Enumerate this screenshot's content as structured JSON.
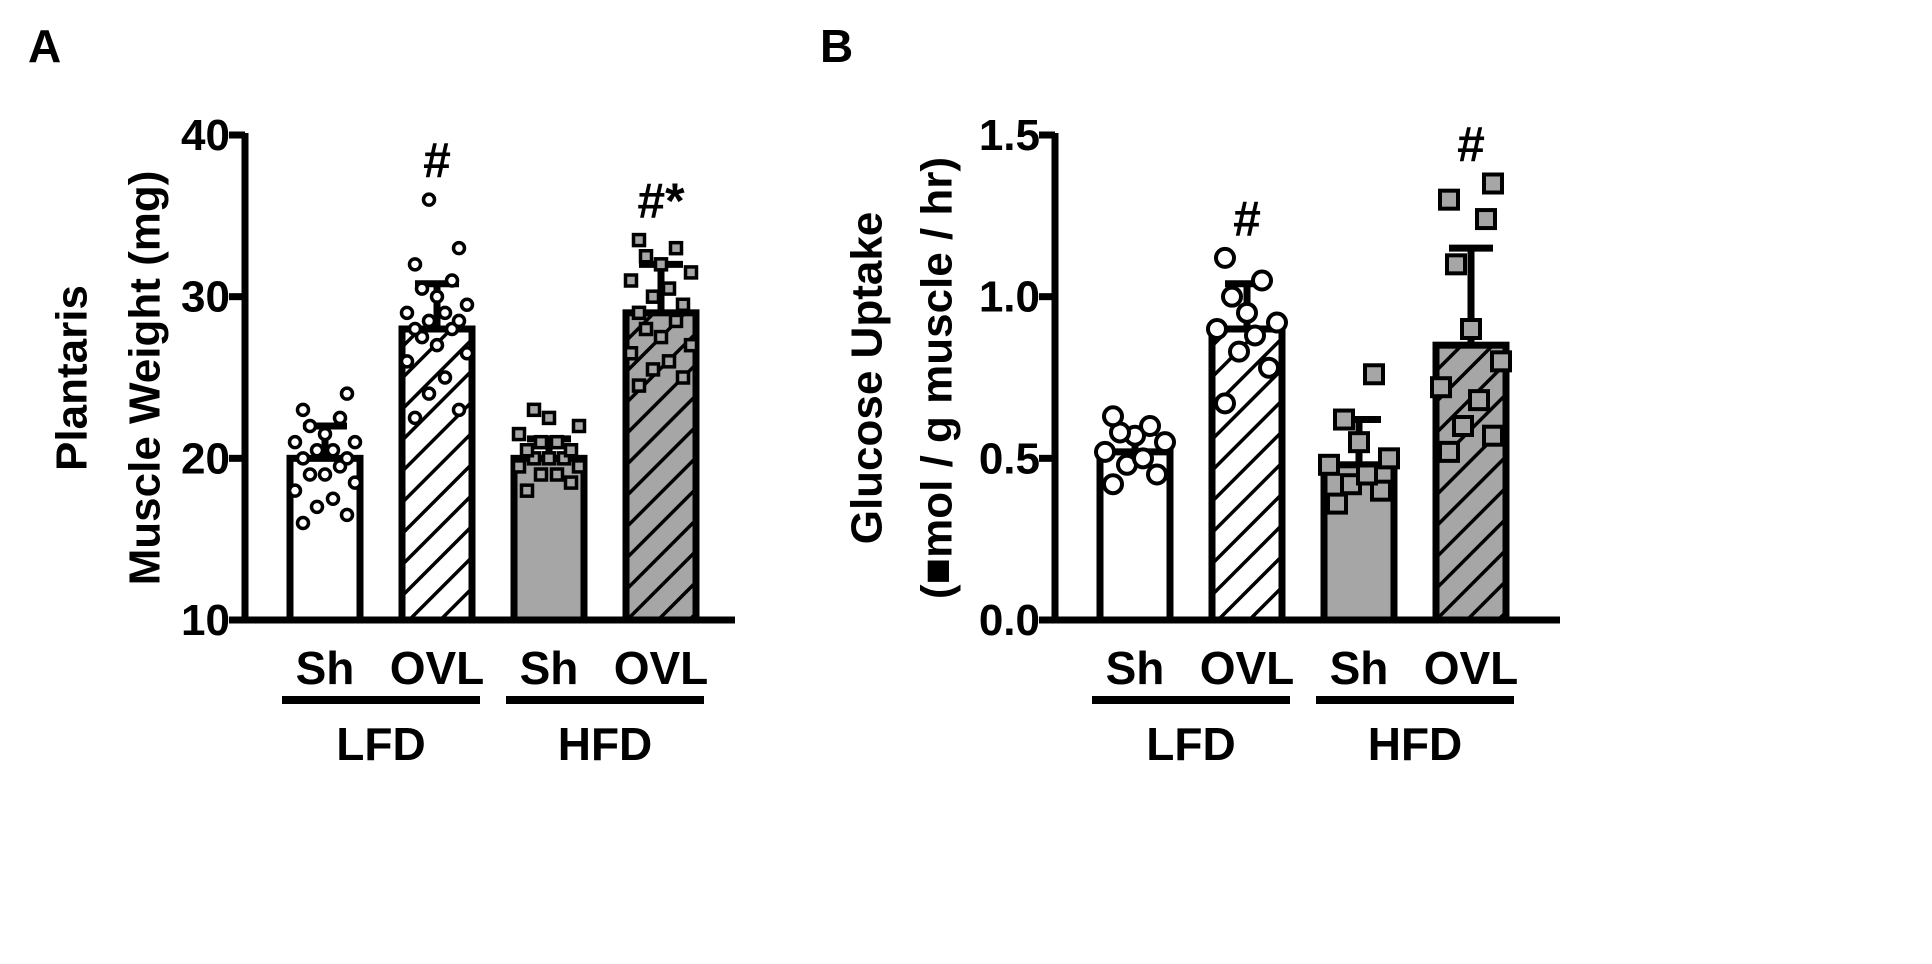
{
  "colors": {
    "open": "#ffffff",
    "gray": "#a6a6a6",
    "ink": "#000000"
  },
  "chart_data": [
    {
      "type": "bar",
      "panel_label": "A",
      "ylabel_lines": [
        "Plantaris",
        "Muscle Weight (mg)"
      ],
      "ylim": [
        10,
        40
      ],
      "yticks": [
        "10",
        "20",
        "30",
        "40"
      ],
      "categories": [
        "Sh",
        "OVL",
        "Sh",
        "OVL"
      ],
      "groups": [
        "LFD",
        "HFD"
      ],
      "bars": [
        {
          "label": "Sh",
          "group": "LFD",
          "value": 20.0,
          "error": 2.0,
          "fill": "white",
          "hatch": false,
          "marker": "circle",
          "sig": "",
          "points": [
            16,
            16.5,
            17,
            17.5,
            18,
            18.5,
            19,
            19,
            19.5,
            20,
            20,
            20.5,
            20.5,
            21,
            21,
            21.5,
            22,
            22.5,
            23,
            24
          ]
        },
        {
          "label": "OVL",
          "group": "LFD",
          "value": 28.0,
          "error": 2.8,
          "fill": "white",
          "hatch": true,
          "marker": "circle",
          "sig": "#",
          "points": [
            22.5,
            23,
            24,
            25,
            26,
            26.5,
            27,
            27.5,
            28,
            28,
            28.5,
            28.5,
            29,
            29,
            29.5,
            30,
            30.5,
            31,
            32,
            33,
            36
          ]
        },
        {
          "label": "Sh",
          "group": "HFD",
          "value": 20.0,
          "error": 1.2,
          "fill": "gray",
          "hatch": false,
          "marker": "square",
          "sig": "",
          "points": [
            18,
            18.5,
            19,
            19,
            19.5,
            19.5,
            20,
            20,
            20,
            20.5,
            20.5,
            21,
            21,
            21.5,
            22,
            22.5,
            23
          ]
        },
        {
          "label": "OVL",
          "group": "HFD",
          "value": 29.0,
          "error": 3.0,
          "fill": "gray",
          "hatch": true,
          "marker": "square",
          "sig": "#*",
          "points": [
            24.5,
            25,
            25.5,
            26,
            26.5,
            27,
            27.5,
            28,
            28.5,
            29,
            29.5,
            30,
            30.5,
            31,
            31.5,
            32,
            32.5,
            33,
            33.5
          ]
        }
      ]
    },
    {
      "type": "bar",
      "panel_label": "B",
      "ylabel_lines": [
        "Glucose Uptake",
        "(■mol / g muscle / hr)"
      ],
      "ylim": [
        0,
        1.5
      ],
      "yticks": [
        "0.0",
        "0.5",
        "1.0",
        "1.5"
      ],
      "categories": [
        "Sh",
        "OVL",
        "Sh",
        "OVL"
      ],
      "groups": [
        "LFD",
        "HFD"
      ],
      "bars": [
        {
          "label": "Sh",
          "group": "LFD",
          "value": 0.52,
          "error": 0.06,
          "fill": "white",
          "hatch": false,
          "marker": "circle",
          "sig": "",
          "points": [
            0.42,
            0.45,
            0.48,
            0.5,
            0.52,
            0.55,
            0.57,
            0.58,
            0.6,
            0.63
          ]
        },
        {
          "label": "OVL",
          "group": "LFD",
          "value": 0.9,
          "error": 0.14,
          "fill": "white",
          "hatch": true,
          "marker": "circle",
          "sig": "#",
          "points": [
            0.67,
            0.78,
            0.83,
            0.88,
            0.9,
            0.92,
            0.95,
            1.0,
            1.05,
            1.12
          ]
        },
        {
          "label": "Sh",
          "group": "HFD",
          "value": 0.48,
          "error": 0.14,
          "fill": "gray",
          "hatch": false,
          "marker": "square",
          "sig": "",
          "points": [
            0.36,
            0.4,
            0.42,
            0.45,
            0.48,
            0.5,
            0.55,
            0.62,
            0.76
          ]
        },
        {
          "label": "OVL",
          "group": "HFD",
          "value": 0.85,
          "error": 0.3,
          "fill": "gray",
          "hatch": true,
          "marker": "square",
          "sig": "#",
          "points": [
            0.52,
            0.57,
            0.6,
            0.68,
            0.72,
            0.8,
            0.9,
            1.1,
            1.24,
            1.3,
            1.35
          ]
        }
      ]
    }
  ]
}
